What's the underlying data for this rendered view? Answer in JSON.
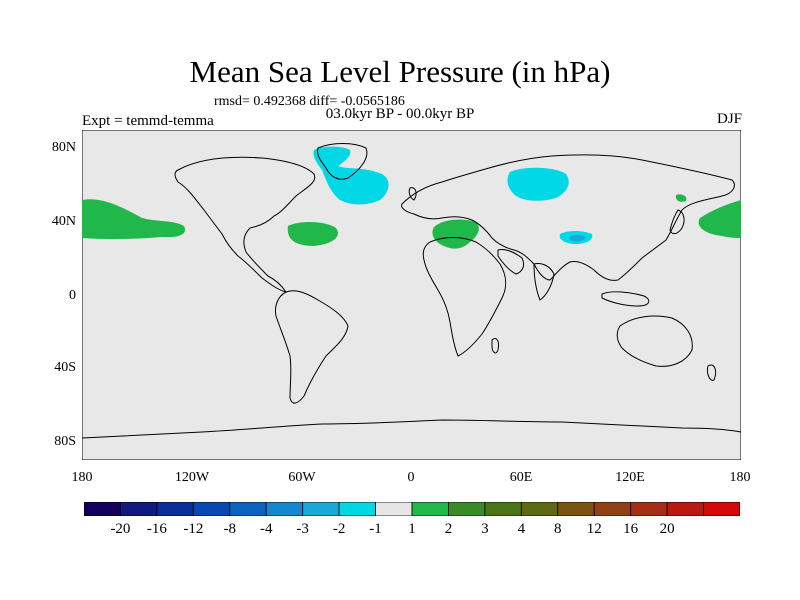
{
  "title": "Mean Sea Level Pressure (in hPa)",
  "stats": "rmsd= 0.492368 diff= -0.0565186",
  "period": "03.0kyr BP - 00.0kyr BP",
  "expt": "Expt = temmd-temma",
  "season": "DJF",
  "colors": {
    "background": "#e8e8e8",
    "coast": "#000000",
    "neg": "#00d8e6",
    "neg_deep": "#19a9d8",
    "pos": "#20b84a"
  },
  "lat_labels": [
    "80N",
    "40N",
    "0",
    "40S",
    "80S"
  ],
  "lon_labels": [
    "180",
    "120W",
    "60W",
    "0",
    "60E",
    "120E",
    "180"
  ],
  "colorbar": {
    "colors": [
      "#14005a",
      "#111a80",
      "#0a2e9a",
      "#0848b4",
      "#0c63c0",
      "#1487cf",
      "#19a9d8",
      "#00d8e6",
      "#e6e6e6",
      "#20b84a",
      "#3a8a28",
      "#4a7418",
      "#5e6a12",
      "#7a5412",
      "#924016",
      "#a62e16",
      "#bc1810",
      "#d60808"
    ],
    "labels": [
      "-20",
      "-16",
      "-12",
      "-8",
      "-4",
      "-3",
      "-2",
      "-1",
      "1",
      "2",
      "3",
      "4",
      "8",
      "12",
      "16",
      "20"
    ]
  }
}
